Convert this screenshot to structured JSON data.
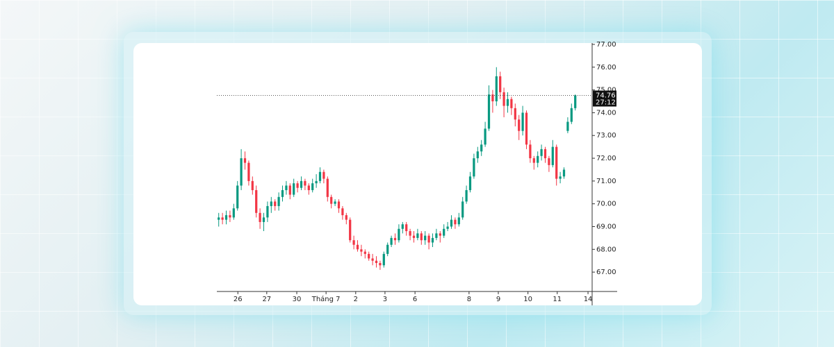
{
  "chart_data": {
    "type": "candlestick",
    "up_color": "#089981",
    "down_color": "#f23645",
    "xlim": [
      0,
      100
    ],
    "xticks": [
      {
        "value": 5.6,
        "label": "26"
      },
      {
        "value": 13.3,
        "label": "27"
      },
      {
        "value": 21.3,
        "label": "30"
      },
      {
        "value": 29.1,
        "label": "Tháng 7"
      },
      {
        "value": 37,
        "label": "2"
      },
      {
        "value": 44.8,
        "label": "3"
      },
      {
        "value": 52.8,
        "label": "6"
      },
      {
        "value": 67.2,
        "label": "8"
      },
      {
        "value": 75,
        "label": "9"
      },
      {
        "value": 82.9,
        "label": "10"
      },
      {
        "value": 90.7,
        "label": "11"
      },
      {
        "value": 98.9,
        "label": "14"
      }
    ],
    "ylim": [
      66.15,
      77.06
    ],
    "yticks": [
      {
        "value": 67,
        "label": "67.00"
      },
      {
        "value": 68,
        "label": "68.00"
      },
      {
        "value": 69,
        "label": "69.00"
      },
      {
        "value": 70,
        "label": "70.00"
      },
      {
        "value": 71,
        "label": "71.00"
      },
      {
        "value": 72,
        "label": "72.00"
      },
      {
        "value": 73,
        "label": "73.00"
      },
      {
        "value": 74,
        "label": "74.00"
      },
      {
        "value": 75,
        "label": "75.00"
      },
      {
        "value": 76,
        "label": "76.00"
      },
      {
        "value": 77,
        "label": "77.00"
      }
    ],
    "last_price": 74.76,
    "countdown": "27:12",
    "candles": [
      [
        69.3,
        69.6,
        69.0,
        69.4
      ],
      [
        69.4,
        69.6,
        69.1,
        69.3
      ],
      [
        69.3,
        69.7,
        69.1,
        69.5
      ],
      [
        69.5,
        69.7,
        69.2,
        69.4
      ],
      [
        69.4,
        70.0,
        69.3,
        69.8
      ],
      [
        69.8,
        71.0,
        69.7,
        70.8
      ],
      [
        70.8,
        72.4,
        70.6,
        72.0
      ],
      [
        72.0,
        72.3,
        71.5,
        71.8
      ],
      [
        71.8,
        71.9,
        70.8,
        71.0
      ],
      [
        71.0,
        71.2,
        70.4,
        70.6
      ],
      [
        70.6,
        70.8,
        69.4,
        69.6
      ],
      [
        69.6,
        69.8,
        68.9,
        69.2
      ],
      [
        69.2,
        69.6,
        68.8,
        69.4
      ],
      [
        69.4,
        70.1,
        69.2,
        69.9
      ],
      [
        69.9,
        70.3,
        69.6,
        70.1
      ],
      [
        70.1,
        70.2,
        69.7,
        69.9
      ],
      [
        69.9,
        70.5,
        69.7,
        70.3
      ],
      [
        70.3,
        70.8,
        70.1,
        70.6
      ],
      [
        70.6,
        71.0,
        70.4,
        70.8
      ],
      [
        70.8,
        70.9,
        70.2,
        70.4
      ],
      [
        70.4,
        71.1,
        70.3,
        70.9
      ],
      [
        70.9,
        71.0,
        70.5,
        70.7
      ],
      [
        70.7,
        71.2,
        70.6,
        71.0
      ],
      [
        71.0,
        71.1,
        70.6,
        70.8
      ],
      [
        70.8,
        70.9,
        70.4,
        70.6
      ],
      [
        70.6,
        71.1,
        70.5,
        70.9
      ],
      [
        70.9,
        71.3,
        70.7,
        71.0
      ],
      [
        71.0,
        71.6,
        70.9,
        71.4
      ],
      [
        71.4,
        71.5,
        70.9,
        71.1
      ],
      [
        71.1,
        71.2,
        70.1,
        70.3
      ],
      [
        70.3,
        70.4,
        69.8,
        70.0
      ],
      [
        70.0,
        70.2,
        69.9,
        70.1
      ],
      [
        70.1,
        70.2,
        69.6,
        69.8
      ],
      [
        69.8,
        69.9,
        69.3,
        69.5
      ],
      [
        69.5,
        69.6,
        69.1,
        69.3
      ],
      [
        69.3,
        69.4,
        68.3,
        68.4
      ],
      [
        68.4,
        68.6,
        68.0,
        68.2
      ],
      [
        68.2,
        68.4,
        67.9,
        68.0
      ],
      [
        68.0,
        68.2,
        67.7,
        67.9
      ],
      [
        67.9,
        68.0,
        67.6,
        67.8
      ],
      [
        67.8,
        67.9,
        67.5,
        67.6
      ],
      [
        67.6,
        67.8,
        67.3,
        67.5
      ],
      [
        67.5,
        67.7,
        67.2,
        67.4
      ],
      [
        67.4,
        67.5,
        67.1,
        67.3
      ],
      [
        67.3,
        67.9,
        67.2,
        67.8
      ],
      [
        67.8,
        68.3,
        67.7,
        68.2
      ],
      [
        68.2,
        68.6,
        68.1,
        68.5
      ],
      [
        68.5,
        68.7,
        68.2,
        68.4
      ],
      [
        68.4,
        69.1,
        68.3,
        68.9
      ],
      [
        68.9,
        69.2,
        68.7,
        69.1
      ],
      [
        69.1,
        69.2,
        68.6,
        68.8
      ],
      [
        68.8,
        68.9,
        68.4,
        68.6
      ],
      [
        68.6,
        68.8,
        68.3,
        68.5
      ],
      [
        68.5,
        68.9,
        68.4,
        68.7
      ],
      [
        68.7,
        68.8,
        68.2,
        68.4
      ],
      [
        68.4,
        68.8,
        68.2,
        68.6
      ],
      [
        68.6,
        68.7,
        68.0,
        68.3
      ],
      [
        68.3,
        68.7,
        68.1,
        68.5
      ],
      [
        68.5,
        68.9,
        68.4,
        68.7
      ],
      [
        68.7,
        68.8,
        68.3,
        68.6
      ],
      [
        68.6,
        69.1,
        68.5,
        68.9
      ],
      [
        68.9,
        69.2,
        68.8,
        69.0
      ],
      [
        69.0,
        69.5,
        68.9,
        69.3
      ],
      [
        69.3,
        69.4,
        68.9,
        69.1
      ],
      [
        69.1,
        69.6,
        69.0,
        69.4
      ],
      [
        69.4,
        70.3,
        69.3,
        70.1
      ],
      [
        70.1,
        70.8,
        70.0,
        70.6
      ],
      [
        70.6,
        71.4,
        70.5,
        71.2
      ],
      [
        71.2,
        72.2,
        71.1,
        72.0
      ],
      [
        72.0,
        72.5,
        71.8,
        72.3
      ],
      [
        72.3,
        72.8,
        72.1,
        72.6
      ],
      [
        72.6,
        73.6,
        72.5,
        73.3
      ],
      [
        73.3,
        75.2,
        73.2,
        74.8
      ],
      [
        74.8,
        75.0,
        74.0,
        74.5
      ],
      [
        74.5,
        76.0,
        74.3,
        75.6
      ],
      [
        75.6,
        75.8,
        74.6,
        74.9
      ],
      [
        74.9,
        75.1,
        73.8,
        74.3
      ],
      [
        74.3,
        74.9,
        74.0,
        74.6
      ],
      [
        74.6,
        74.7,
        73.9,
        74.2
      ],
      [
        74.2,
        74.4,
        73.4,
        73.7
      ],
      [
        73.7,
        73.9,
        72.8,
        73.2
      ],
      [
        73.2,
        74.3,
        73.0,
        74.0
      ],
      [
        74.0,
        74.1,
        72.4,
        72.6
      ],
      [
        72.6,
        72.8,
        71.8,
        72.0
      ],
      [
        72.0,
        72.1,
        71.5,
        71.8
      ],
      [
        71.8,
        72.3,
        71.6,
        72.1
      ],
      [
        72.1,
        72.6,
        71.9,
        72.4
      ],
      [
        72.4,
        72.5,
        71.8,
        72.0
      ],
      [
        72.0,
        72.1,
        71.4,
        71.7
      ],
      [
        71.7,
        72.8,
        71.6,
        72.5
      ],
      [
        72.5,
        72.6,
        70.8,
        71.1
      ],
      [
        71.1,
        71.4,
        70.9,
        71.2
      ],
      [
        71.2,
        71.6,
        71.1,
        71.5
      ],
      [
        73.2,
        73.8,
        73.1,
        73.6
      ],
      [
        73.6,
        74.4,
        73.5,
        74.2
      ],
      [
        74.2,
        74.8,
        74.1,
        74.76
      ]
    ]
  }
}
